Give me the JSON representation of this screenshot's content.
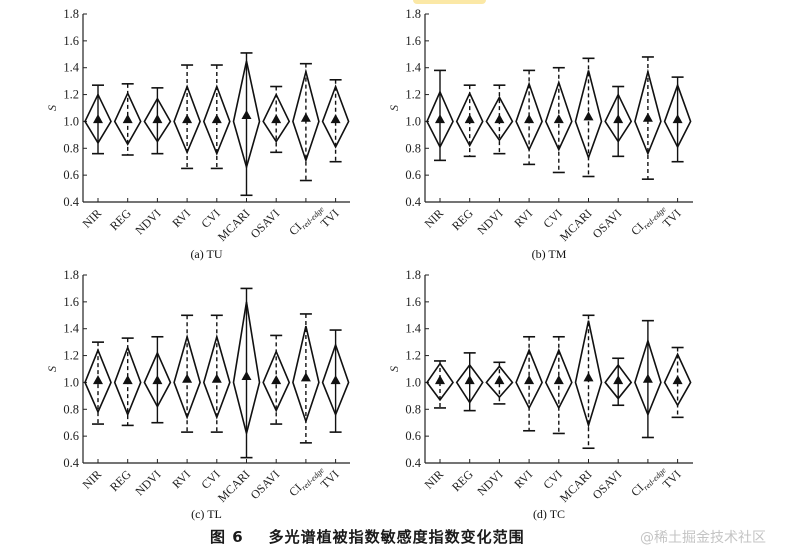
{
  "figure": {
    "caption_number": "图 6",
    "caption_text": "多光谱植被指数敏感度指数变化范围",
    "watermark": "@稀土掘金技术社区",
    "highlight_color": "#fbe8a6"
  },
  "chart_data": [
    {
      "type": "diamond-range",
      "panel_title": "(a) TU",
      "ylabel": "S",
      "ylim": [
        0.4,
        1.8
      ],
      "yticks": [
        "0.4",
        "0.6",
        "0.8",
        "1.0",
        "1.2",
        "1.4",
        "1.6",
        "1.8"
      ],
      "categories": [
        "NIR",
        "REG",
        "NDVI",
        "RVI",
        "CVI",
        "MCARI",
        "OSAVI",
        "CI",
        "TVI"
      ],
      "category_subscripts": [
        "",
        "",
        "",
        "",
        "",
        "",
        "",
        "red-edge",
        ""
      ],
      "series": {
        "max": [
          1.27,
          1.28,
          1.25,
          1.42,
          1.42,
          1.51,
          1.26,
          1.43,
          1.31
        ],
        "min": [
          0.76,
          0.75,
          0.76,
          0.65,
          0.65,
          0.45,
          0.77,
          0.56,
          0.7
        ],
        "upper": [
          1.2,
          1.21,
          1.17,
          1.26,
          1.26,
          1.45,
          1.2,
          1.37,
          1.26
        ],
        "lower": [
          0.84,
          0.83,
          0.85,
          0.77,
          0.76,
          0.66,
          0.85,
          0.71,
          0.81
        ],
        "center": [
          1.0,
          1.0,
          1.0,
          1.0,
          1.0,
          1.0,
          1.0,
          1.0,
          1.0
        ],
        "mean": [
          1.01,
          1.01,
          1.01,
          1.01,
          1.01,
          1.04,
          1.01,
          1.02,
          1.01
        ],
        "line_style": [
          "solid",
          "dashed",
          "solid",
          "dashed",
          "dashed",
          "solid",
          "dashed",
          "dashed",
          "dashed"
        ]
      }
    },
    {
      "type": "diamond-range",
      "panel_title": "(b) TM",
      "ylabel": "S",
      "ylim": [
        0.4,
        1.8
      ],
      "yticks": [
        "0.4",
        "0.6",
        "0.8",
        "1.0",
        "1.2",
        "1.4",
        "1.6",
        "1.8"
      ],
      "categories": [
        "NIR",
        "REG",
        "NDVI",
        "RVI",
        "CVI",
        "MCARI",
        "OSAVI",
        "CI",
        "TVI"
      ],
      "category_subscripts": [
        "",
        "",
        "",
        "",
        "",
        "",
        "",
        "red-edge",
        ""
      ],
      "series": {
        "max": [
          1.38,
          1.27,
          1.27,
          1.38,
          1.4,
          1.47,
          1.26,
          1.48,
          1.33
        ],
        "min": [
          0.71,
          0.74,
          0.76,
          0.68,
          0.62,
          0.59,
          0.74,
          0.57,
          0.7
        ],
        "upper": [
          1.22,
          1.21,
          1.18,
          1.28,
          1.29,
          1.38,
          1.2,
          1.37,
          1.27
        ],
        "lower": [
          0.81,
          0.82,
          0.86,
          0.79,
          0.79,
          0.73,
          0.85,
          0.76,
          0.81
        ],
        "center": [
          1.0,
          1.0,
          1.0,
          1.0,
          1.0,
          1.0,
          1.0,
          1.0,
          1.0
        ],
        "mean": [
          1.01,
          1.01,
          1.01,
          1.01,
          1.01,
          1.03,
          1.01,
          1.02,
          1.01
        ],
        "line_style": [
          "solid",
          "dashed",
          "dashed",
          "dashed",
          "dashed",
          "dashed",
          "solid",
          "dashed",
          "solid"
        ]
      }
    },
    {
      "type": "diamond-range",
      "panel_title": "(c) TL",
      "ylabel": "S",
      "ylim": [
        0.4,
        1.8
      ],
      "yticks": [
        "0.4",
        "0.6",
        "0.8",
        "1.0",
        "1.2",
        "1.4",
        "1.6",
        "1.8"
      ],
      "categories": [
        "NIR",
        "REG",
        "NDVI",
        "RVI",
        "CVI",
        "MCARI",
        "OSAVI",
        "CI",
        "TVI"
      ],
      "category_subscripts": [
        "",
        "",
        "",
        "",
        "",
        "",
        "",
        "red-edge",
        ""
      ],
      "series": {
        "max": [
          1.3,
          1.33,
          1.34,
          1.5,
          1.5,
          1.7,
          1.35,
          1.51,
          1.39
        ],
        "min": [
          0.69,
          0.68,
          0.7,
          0.63,
          0.63,
          0.44,
          0.69,
          0.55,
          0.63
        ],
        "upper": [
          1.24,
          1.26,
          1.22,
          1.34,
          1.34,
          1.6,
          1.23,
          1.42,
          1.28
        ],
        "lower": [
          0.78,
          0.76,
          0.82,
          0.74,
          0.74,
          0.62,
          0.79,
          0.71,
          0.76
        ],
        "center": [
          1.0,
          1.0,
          1.0,
          1.0,
          1.0,
          1.0,
          1.0,
          1.0,
          1.0
        ],
        "mean": [
          1.01,
          1.01,
          1.01,
          1.02,
          1.02,
          1.04,
          1.01,
          1.03,
          1.01
        ],
        "line_style": [
          "dashed",
          "dashed",
          "solid",
          "dashed",
          "dashed",
          "solid",
          "dashed",
          "dashed",
          "solid"
        ]
      }
    },
    {
      "type": "diamond-range",
      "panel_title": "(d) TC",
      "ylabel": "S",
      "ylim": [
        0.4,
        1.8
      ],
      "yticks": [
        "0.4",
        "0.6",
        "0.8",
        "1.0",
        "1.2",
        "1.4",
        "1.6",
        "1.8"
      ],
      "categories": [
        "NIR",
        "REG",
        "NDVI",
        "RVI",
        "CVI",
        "MCARI",
        "OSAVI",
        "CI",
        "TVI"
      ],
      "category_subscripts": [
        "",
        "",
        "",
        "",
        "",
        "",
        "",
        "red-edge",
        ""
      ],
      "series": {
        "max": [
          1.16,
          1.22,
          1.15,
          1.34,
          1.34,
          1.5,
          1.18,
          1.46,
          1.26
        ],
        "min": [
          0.81,
          0.79,
          0.84,
          0.64,
          0.62,
          0.51,
          0.83,
          0.59,
          0.74
        ],
        "upper": [
          1.14,
          1.13,
          1.12,
          1.24,
          1.24,
          1.46,
          1.13,
          1.31,
          1.21
        ],
        "lower": [
          0.87,
          0.85,
          0.89,
          0.81,
          0.81,
          0.68,
          0.88,
          0.76,
          0.83
        ],
        "center": [
          1.0,
          1.0,
          1.0,
          1.0,
          1.0,
          1.0,
          1.0,
          1.0,
          1.0
        ],
        "mean": [
          1.01,
          1.01,
          1.01,
          1.01,
          1.01,
          1.03,
          1.01,
          1.02,
          1.01
        ],
        "line_style": [
          "dashed",
          "solid",
          "dashed",
          "dashed",
          "dashed",
          "dashed",
          "solid",
          "solid",
          "dashed"
        ]
      }
    }
  ]
}
